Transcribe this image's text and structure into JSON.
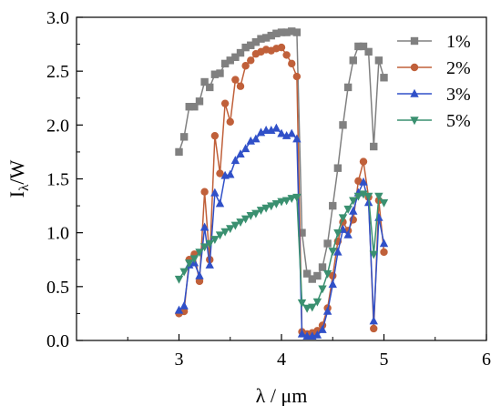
{
  "chart_data": {
    "type": "line",
    "xlabel": "λ / μm",
    "ylabel_main": "I",
    "ylabel_sub": "λ",
    "ylabel_tail": "/W",
    "xlim": [
      2,
      6
    ],
    "ylim": [
      0,
      3
    ],
    "xticks": [
      3,
      4,
      5,
      6
    ],
    "xtick_labels": [
      "3",
      "4",
      "5",
      "6"
    ],
    "yticks": [
      0,
      0.5,
      1,
      1.5,
      2,
      2.5,
      3
    ],
    "ytick_labels": [
      "0.0",
      "0.5",
      "1.0",
      "1.5",
      "2.0",
      "2.5",
      "3.0"
    ],
    "grid": false,
    "legend_position": "top-right",
    "series": [
      {
        "name": "1%",
        "color": "#808080",
        "marker": "square",
        "points": [
          [
            3.0,
            1.75
          ],
          [
            3.05,
            1.89
          ],
          [
            3.1,
            2.17
          ],
          [
            3.15,
            2.17
          ],
          [
            3.2,
            2.22
          ],
          [
            3.25,
            2.4
          ],
          [
            3.3,
            2.35
          ],
          [
            3.35,
            2.47
          ],
          [
            3.4,
            2.48
          ],
          [
            3.45,
            2.57
          ],
          [
            3.5,
            2.6
          ],
          [
            3.55,
            2.63
          ],
          [
            3.6,
            2.67
          ],
          [
            3.65,
            2.72
          ],
          [
            3.7,
            2.74
          ],
          [
            3.75,
            2.77
          ],
          [
            3.8,
            2.8
          ],
          [
            3.85,
            2.81
          ],
          [
            3.9,
            2.83
          ],
          [
            3.95,
            2.85
          ],
          [
            4.0,
            2.86
          ],
          [
            4.05,
            2.86
          ],
          [
            4.1,
            2.87
          ],
          [
            4.15,
            2.86
          ],
          [
            4.2,
            1.0
          ],
          [
            4.25,
            0.62
          ],
          [
            4.3,
            0.57
          ],
          [
            4.35,
            0.6
          ],
          [
            4.4,
            0.68
          ],
          [
            4.45,
            0.9
          ],
          [
            4.5,
            1.25
          ],
          [
            4.55,
            1.6
          ],
          [
            4.6,
            2.0
          ],
          [
            4.65,
            2.35
          ],
          [
            4.7,
            2.6
          ],
          [
            4.75,
            2.73
          ],
          [
            4.8,
            2.73
          ],
          [
            4.85,
            2.68
          ],
          [
            4.9,
            1.8
          ],
          [
            4.95,
            2.6
          ],
          [
            5.0,
            2.44
          ]
        ]
      },
      {
        "name": "2%",
        "color": "#c0603a",
        "marker": "circle",
        "points": [
          [
            3.0,
            0.25
          ],
          [
            3.05,
            0.27
          ],
          [
            3.1,
            0.75
          ],
          [
            3.15,
            0.8
          ],
          [
            3.2,
            0.55
          ],
          [
            3.25,
            1.38
          ],
          [
            3.3,
            0.75
          ],
          [
            3.35,
            1.9
          ],
          [
            3.4,
            1.55
          ],
          [
            3.45,
            2.2
          ],
          [
            3.5,
            2.03
          ],
          [
            3.55,
            2.42
          ],
          [
            3.6,
            2.36
          ],
          [
            3.65,
            2.55
          ],
          [
            3.7,
            2.6
          ],
          [
            3.75,
            2.66
          ],
          [
            3.8,
            2.68
          ],
          [
            3.85,
            2.7
          ],
          [
            3.9,
            2.69
          ],
          [
            3.95,
            2.71
          ],
          [
            4.0,
            2.72
          ],
          [
            4.05,
            2.65
          ],
          [
            4.1,
            2.57
          ],
          [
            4.15,
            2.45
          ],
          [
            4.2,
            0.08
          ],
          [
            4.25,
            0.06
          ],
          [
            4.3,
            0.07
          ],
          [
            4.35,
            0.09
          ],
          [
            4.4,
            0.14
          ],
          [
            4.45,
            0.3
          ],
          [
            4.5,
            0.6
          ],
          [
            4.55,
            0.92
          ],
          [
            4.6,
            1.1
          ],
          [
            4.65,
            1.02
          ],
          [
            4.7,
            1.12
          ],
          [
            4.75,
            1.48
          ],
          [
            4.8,
            1.66
          ],
          [
            4.85,
            1.33
          ],
          [
            4.9,
            0.11
          ],
          [
            4.95,
            1.3
          ],
          [
            5.0,
            0.82
          ]
        ]
      },
      {
        "name": "3%",
        "color": "#3050c8",
        "marker": "triangle-up",
        "points": [
          [
            3.0,
            0.28
          ],
          [
            3.05,
            0.32
          ],
          [
            3.1,
            0.7
          ],
          [
            3.15,
            0.72
          ],
          [
            3.2,
            0.6
          ],
          [
            3.25,
            1.05
          ],
          [
            3.3,
            0.7
          ],
          [
            3.35,
            1.37
          ],
          [
            3.4,
            1.27
          ],
          [
            3.45,
            1.53
          ],
          [
            3.5,
            1.54
          ],
          [
            3.55,
            1.67
          ],
          [
            3.6,
            1.73
          ],
          [
            3.65,
            1.78
          ],
          [
            3.7,
            1.85
          ],
          [
            3.75,
            1.87
          ],
          [
            3.8,
            1.93
          ],
          [
            3.85,
            1.95
          ],
          [
            3.9,
            1.95
          ],
          [
            3.95,
            1.97
          ],
          [
            4.0,
            1.92
          ],
          [
            4.05,
            1.9
          ],
          [
            4.1,
            1.92
          ],
          [
            4.15,
            1.87
          ],
          [
            4.2,
            0.06
          ],
          [
            4.25,
            0.04
          ],
          [
            4.3,
            0.04
          ],
          [
            4.35,
            0.05
          ],
          [
            4.4,
            0.1
          ],
          [
            4.45,
            0.27
          ],
          [
            4.5,
            0.52
          ],
          [
            4.55,
            0.82
          ],
          [
            4.6,
            1.03
          ],
          [
            4.65,
            0.98
          ],
          [
            4.7,
            1.2
          ],
          [
            4.75,
            1.37
          ],
          [
            4.8,
            1.47
          ],
          [
            4.85,
            1.28
          ],
          [
            4.9,
            0.18
          ],
          [
            4.95,
            1.14
          ],
          [
            5.0,
            0.9
          ]
        ]
      },
      {
        "name": "5%",
        "color": "#3a9070",
        "marker": "triangle-down",
        "points": [
          [
            3.0,
            0.57
          ],
          [
            3.05,
            0.64
          ],
          [
            3.1,
            0.72
          ],
          [
            3.15,
            0.76
          ],
          [
            3.2,
            0.82
          ],
          [
            3.25,
            0.87
          ],
          [
            3.3,
            0.9
          ],
          [
            3.35,
            0.94
          ],
          [
            3.4,
            0.98
          ],
          [
            3.45,
            1.01
          ],
          [
            3.5,
            1.04
          ],
          [
            3.55,
            1.07
          ],
          [
            3.6,
            1.1
          ],
          [
            3.65,
            1.13
          ],
          [
            3.7,
            1.16
          ],
          [
            3.75,
            1.18
          ],
          [
            3.8,
            1.21
          ],
          [
            3.85,
            1.23
          ],
          [
            3.9,
            1.25
          ],
          [
            3.95,
            1.27
          ],
          [
            4.0,
            1.29
          ],
          [
            4.05,
            1.3
          ],
          [
            4.1,
            1.32
          ],
          [
            4.15,
            1.33
          ],
          [
            4.2,
            0.35
          ],
          [
            4.25,
            0.3
          ],
          [
            4.3,
            0.31
          ],
          [
            4.35,
            0.36
          ],
          [
            4.4,
            0.48
          ],
          [
            4.45,
            0.62
          ],
          [
            4.5,
            0.83
          ],
          [
            4.55,
            1.0
          ],
          [
            4.6,
            1.14
          ],
          [
            4.65,
            1.22
          ],
          [
            4.7,
            1.3
          ],
          [
            4.75,
            1.34
          ],
          [
            4.8,
            1.36
          ],
          [
            4.85,
            1.34
          ],
          [
            4.9,
            0.8
          ],
          [
            4.95,
            1.34
          ],
          [
            5.0,
            1.28
          ]
        ]
      }
    ]
  }
}
